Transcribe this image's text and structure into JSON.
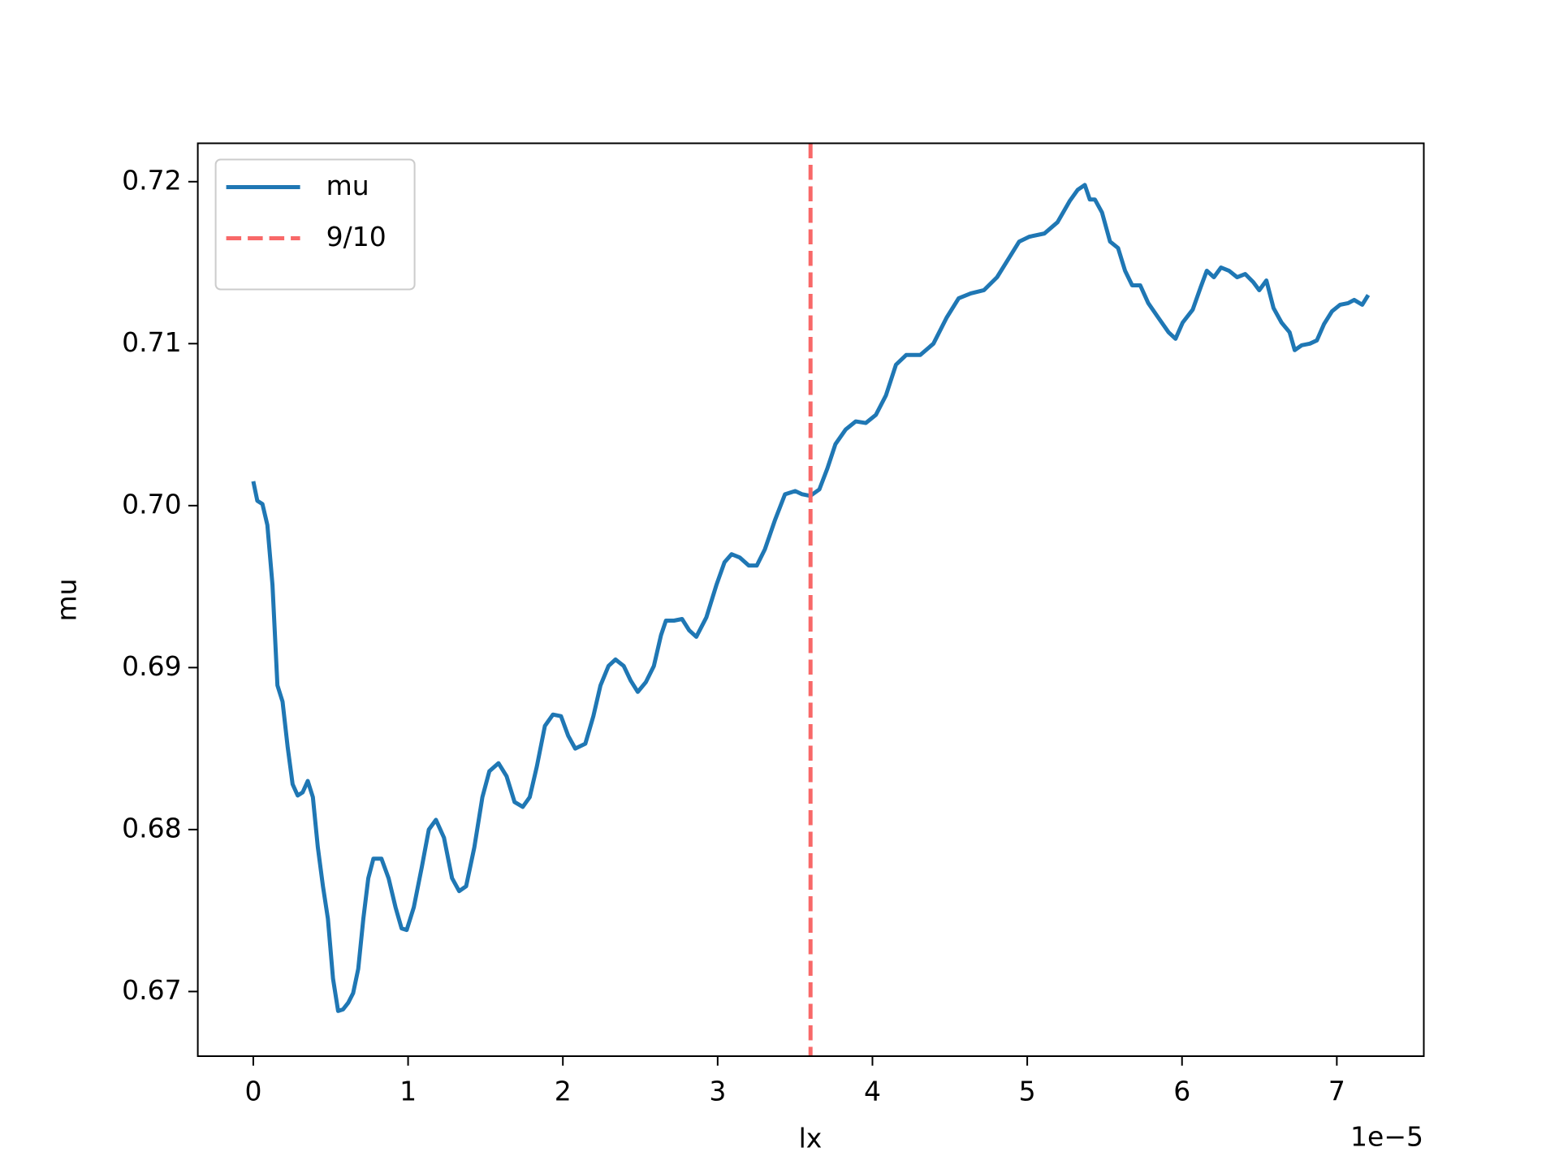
{
  "chart_data": {
    "type": "line",
    "xlabel": "lx",
    "ylabel": "mu",
    "x_offset_label": "1e−5",
    "xlim": [
      -0.3585,
      7.562
    ],
    "ylim": [
      0.66601,
      0.72237
    ],
    "xticks": [
      0,
      1,
      2,
      3,
      4,
      5,
      6,
      7
    ],
    "yticks": [
      0.67,
      0.68,
      0.69,
      {
        "value": 0.7,
        "label": "0.70"
      },
      0.71,
      0.72
    ],
    "legend": "upper left",
    "x": [
      0,
      0.026,
      0.059,
      0.091,
      0.124,
      0.156,
      0.189,
      0.222,
      0.254,
      0.287,
      0.319,
      0.352,
      0.385,
      0.417,
      0.45,
      0.482,
      0.515,
      0.548,
      0.58,
      0.613,
      0.645,
      0.678,
      0.711,
      0.743,
      0.776,
      0.828,
      0.874,
      0.919,
      0.958,
      0.991,
      1.037,
      1.089,
      1.134,
      1.18,
      1.232,
      1.284,
      1.33,
      1.375,
      1.428,
      1.48,
      1.525,
      1.584,
      1.636,
      1.688,
      1.741,
      1.786,
      1.832,
      1.884,
      1.936,
      1.988,
      2.034,
      2.08,
      2.145,
      2.197,
      2.243,
      2.295,
      2.34,
      2.393,
      2.438,
      2.484,
      2.536,
      2.588,
      2.634,
      2.666,
      2.718,
      2.77,
      2.816,
      2.862,
      2.927,
      2.992,
      3.044,
      3.09,
      3.142,
      3.201,
      3.253,
      3.305,
      3.37,
      3.435,
      3.501,
      3.546,
      3.598,
      3.657,
      3.709,
      3.761,
      3.827,
      3.892,
      3.957,
      4.022,
      4.087,
      4.152,
      4.218,
      4.309,
      4.394,
      4.479,
      4.557,
      4.635,
      4.72,
      4.805,
      4.883,
      4.948,
      5.013,
      5.111,
      5.196,
      5.274,
      5.326,
      5.372,
      5.404,
      5.437,
      5.483,
      5.535,
      5.587,
      5.632,
      5.678,
      5.73,
      5.782,
      5.847,
      5.913,
      5.958,
      6.004,
      6.069,
      6.121,
      6.16,
      6.206,
      6.252,
      6.304,
      6.356,
      6.408,
      6.46,
      6.499,
      6.545,
      6.591,
      6.643,
      6.695,
      6.728,
      6.773,
      6.826,
      6.871,
      6.917,
      6.969,
      7.021,
      7.073,
      7.112,
      7.164,
      7.203
    ],
    "series": [
      {
        "name": "mu",
        "color": "#1f77b4",
        "values": [
          0.7015,
          0.7003,
          0.7001,
          0.6988,
          0.6951,
          0.6889,
          0.6879,
          0.6851,
          0.6828,
          0.6821,
          0.6823,
          0.683,
          0.682,
          0.6789,
          0.6765,
          0.6745,
          0.6708,
          0.6688,
          0.6689,
          0.6693,
          0.6699,
          0.6714,
          0.6745,
          0.677,
          0.6782,
          0.6782,
          0.677,
          0.6752,
          0.6739,
          0.6738,
          0.6752,
          0.6777,
          0.68,
          0.6806,
          0.6795,
          0.677,
          0.6762,
          0.6765,
          0.6789,
          0.682,
          0.6836,
          0.6841,
          0.6833,
          0.6817,
          0.6814,
          0.682,
          0.6839,
          0.6864,
          0.6871,
          0.687,
          0.6858,
          0.685,
          0.6853,
          0.687,
          0.6889,
          0.6901,
          0.6905,
          0.6901,
          0.6892,
          0.6885,
          0.6891,
          0.6901,
          0.692,
          0.6929,
          0.6929,
          0.693,
          0.6923,
          0.6919,
          0.6931,
          0.6951,
          0.6965,
          0.697,
          0.6968,
          0.6963,
          0.6963,
          0.6973,
          0.6991,
          0.7007,
          0.7009,
          0.7007,
          0.7006,
          0.701,
          0.7023,
          0.7038,
          0.7047,
          0.7052,
          0.7051,
          0.7056,
          0.7068,
          0.7087,
          0.7093,
          0.7093,
          0.71,
          0.7116,
          0.7128,
          0.7131,
          0.7133,
          0.7141,
          0.7153,
          0.7163,
          0.7166,
          0.7168,
          0.7175,
          0.7188,
          0.7195,
          0.7198,
          0.7189,
          0.7189,
          0.7181,
          0.7163,
          0.7159,
          0.7145,
          0.7136,
          0.7136,
          0.7125,
          0.7116,
          0.7107,
          0.7103,
          0.7113,
          0.7121,
          0.7135,
          0.7145,
          0.7141,
          0.7147,
          0.7145,
          0.7141,
          0.7143,
          0.7138,
          0.7133,
          0.7139,
          0.7122,
          0.7113,
          0.7107,
          0.7096,
          0.7099,
          0.71,
          0.7102,
          0.7112,
          0.712,
          0.7124,
          0.7125,
          0.7127,
          0.7124,
          0.713
        ]
      }
    ],
    "vlines": [
      {
        "name": "9/10",
        "color": "#f86868",
        "x": 3.6,
        "style": "dashed"
      }
    ]
  }
}
